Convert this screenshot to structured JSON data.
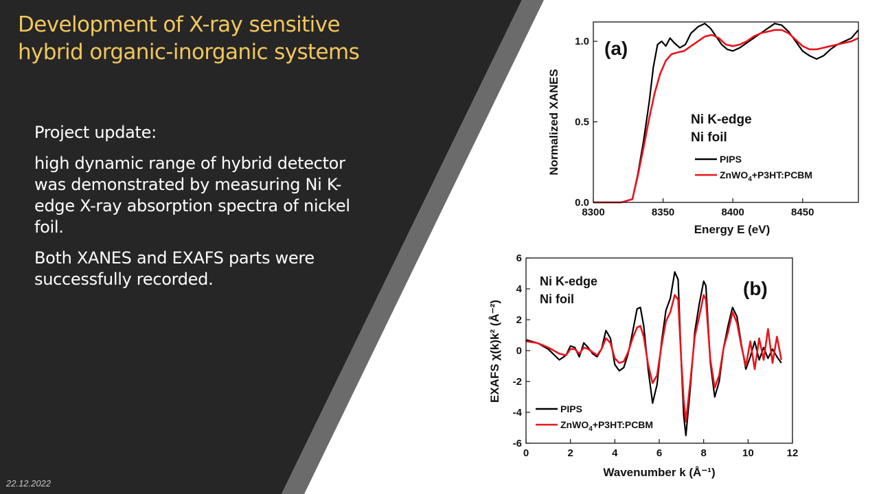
{
  "slide": {
    "title_lines": [
      "Development of X-ray sensitive",
      "hybrid organic-inorganic systems"
    ],
    "paragraphs": [
      "Project update:",
      "high dynamic range of hybrid detector was demonstrated by measuring Ni K-edge X-ray absorption spectra of nickel foil.",
      "Both XANES and EXAFS parts were successfully recorded."
    ],
    "date": "22.12.2022"
  },
  "colors": {
    "dark_panel": "#262626",
    "stripe": "#6b6b6b",
    "title": "#f2c75c",
    "text": "#ffffff",
    "series_pips": "#000000",
    "series_hybrid": "#e8141b"
  },
  "chart_data": [
    {
      "type": "line",
      "panel_label": "(a)",
      "annotation": [
        "Ni K-edge",
        "Ni foil"
      ],
      "xlabel": "Energy E (eV)",
      "ylabel": "Normalized XANES",
      "xlim": [
        8300,
        8490
      ],
      "ylim": [
        0,
        1.12
      ],
      "xticks": [
        8300,
        8350,
        8400,
        8450
      ],
      "yticks": [
        0.0,
        0.5,
        1.0
      ],
      "ytick_labels": [
        "0.0",
        "0.5",
        "1.0"
      ],
      "legend": "center-right",
      "series": [
        {
          "name": "PIPS",
          "color": "#000000",
          "x": [
            8300,
            8320,
            8328,
            8332,
            8336,
            8340,
            8343,
            8346,
            8349,
            8352,
            8355,
            8358,
            8362,
            8366,
            8370,
            8375,
            8380,
            8384,
            8388,
            8392,
            8396,
            8400,
            8405,
            8410,
            8415,
            8420,
            8425,
            8430,
            8435,
            8440,
            8445,
            8450,
            8455,
            8460,
            8465,
            8470,
            8475,
            8480,
            8485,
            8490
          ],
          "y": [
            0.0,
            0.0,
            0.02,
            0.18,
            0.38,
            0.62,
            0.84,
            0.98,
            1.0,
            0.97,
            1.02,
            0.99,
            0.96,
            0.98,
            1.05,
            1.09,
            1.11,
            1.08,
            1.03,
            0.98,
            0.95,
            0.94,
            0.96,
            0.99,
            1.02,
            1.05,
            1.08,
            1.11,
            1.1,
            1.06,
            1.0,
            0.94,
            0.91,
            0.89,
            0.91,
            0.95,
            0.98,
            1.0,
            1.02,
            1.07
          ]
        },
        {
          "name": "ZnWO4+P3HT:PCBM",
          "color": "#e8141b",
          "x": [
            8300,
            8320,
            8328,
            8332,
            8336,
            8340,
            8344,
            8348,
            8352,
            8356,
            8360,
            8365,
            8370,
            8375,
            8380,
            8385,
            8390,
            8395,
            8400,
            8405,
            8410,
            8415,
            8420,
            8425,
            8430,
            8435,
            8440,
            8445,
            8450,
            8455,
            8460,
            8465,
            8470,
            8475,
            8480,
            8485,
            8490
          ],
          "y": [
            0.0,
            0.0,
            0.02,
            0.17,
            0.34,
            0.52,
            0.68,
            0.8,
            0.88,
            0.92,
            0.93,
            0.94,
            0.97,
            1.0,
            1.03,
            1.04,
            1.02,
            0.98,
            0.97,
            0.98,
            1.0,
            1.03,
            1.05,
            1.06,
            1.07,
            1.07,
            1.05,
            1.01,
            0.97,
            0.95,
            0.95,
            0.96,
            0.97,
            0.98,
            0.99,
            1.0,
            1.02
          ]
        }
      ]
    },
    {
      "type": "line",
      "panel_label": "(b)",
      "annotation": [
        "Ni K-edge",
        "Ni foil"
      ],
      "xlabel": "Wavenumber k (Å⁻¹)",
      "ylabel": "EXAFS χ(k)k² (Å⁻²)",
      "xlim": [
        0,
        12
      ],
      "ylim": [
        -6,
        6
      ],
      "xticks": [
        0,
        2,
        4,
        6,
        8,
        10,
        12
      ],
      "yticks": [
        -6,
        -4,
        -2,
        0,
        2,
        4,
        6
      ],
      "legend": "bottom-left",
      "series": [
        {
          "name": "PIPS",
          "color": "#000000",
          "x": [
            0,
            0.5,
            1.0,
            1.5,
            1.8,
            2.0,
            2.2,
            2.4,
            2.6,
            2.8,
            3.0,
            3.2,
            3.4,
            3.6,
            3.8,
            4.0,
            4.2,
            4.4,
            4.6,
            4.8,
            5.0,
            5.15,
            5.3,
            5.5,
            5.7,
            5.9,
            6.1,
            6.3,
            6.5,
            6.7,
            6.85,
            7.0,
            7.1,
            7.2,
            7.4,
            7.6,
            7.8,
            8.0,
            8.1,
            8.3,
            8.5,
            8.7,
            8.9,
            9.1,
            9.3,
            9.5,
            9.7,
            9.9,
            10.1,
            10.3,
            10.5,
            10.7,
            10.9,
            11.1,
            11.3,
            11.5
          ],
          "y": [
            0.7,
            0.5,
            0.1,
            -0.6,
            -0.3,
            0.3,
            0.2,
            -0.4,
            0.5,
            0.2,
            -0.2,
            -0.4,
            0.1,
            1.3,
            0.8,
            -0.9,
            -1.3,
            -1.1,
            -0.2,
            1.2,
            2.7,
            2.8,
            1.6,
            -1.2,
            -3.4,
            -2.2,
            0.5,
            2.6,
            3.4,
            5.1,
            4.6,
            -1.0,
            -4.2,
            -5.5,
            -2.4,
            1.2,
            3.0,
            4.5,
            4.2,
            -0.8,
            -3.0,
            -2.0,
            0.2,
            1.6,
            2.8,
            2.2,
            0.4,
            -1.2,
            -0.4,
            0.6,
            -0.6,
            0.2,
            -0.5,
            0.1,
            -0.4,
            -0.8
          ]
        },
        {
          "name": "ZnWO4+P3HT:PCBM",
          "color": "#e8141b",
          "x": [
            0,
            0.5,
            1.0,
            1.5,
            1.8,
            2.0,
            2.2,
            2.4,
            2.6,
            2.8,
            3.0,
            3.2,
            3.4,
            3.6,
            3.8,
            4.0,
            4.2,
            4.4,
            4.6,
            4.8,
            5.0,
            5.15,
            5.3,
            5.5,
            5.7,
            5.9,
            6.1,
            6.3,
            6.5,
            6.7,
            6.85,
            7.0,
            7.1,
            7.2,
            7.4,
            7.6,
            7.8,
            8.0,
            8.1,
            8.3,
            8.5,
            8.7,
            8.9,
            9.1,
            9.3,
            9.5,
            9.7,
            9.9,
            10.1,
            10.3,
            10.5,
            10.7,
            10.9,
            11.1,
            11.3,
            11.5
          ],
          "y": [
            0.6,
            0.5,
            0.2,
            -0.2,
            -0.3,
            0.1,
            0.1,
            -0.2,
            0.2,
            0.1,
            -0.1,
            -0.3,
            0.1,
            0.8,
            0.5,
            -0.5,
            -0.8,
            -0.7,
            -0.1,
            0.8,
            1.5,
            1.6,
            0.9,
            -0.9,
            -2.1,
            -1.6,
            0.3,
            1.9,
            2.5,
            3.6,
            3.3,
            -0.8,
            -3.2,
            -4.6,
            -2.0,
            0.9,
            2.2,
            3.6,
            3.3,
            -0.6,
            -2.4,
            -1.6,
            0.2,
            1.2,
            2.5,
            1.8,
            0.3,
            -1.0,
            0.6,
            -1.2,
            0.8,
            -0.6,
            1.4,
            -0.8,
            0.9,
            -0.6
          ]
        }
      ]
    }
  ]
}
